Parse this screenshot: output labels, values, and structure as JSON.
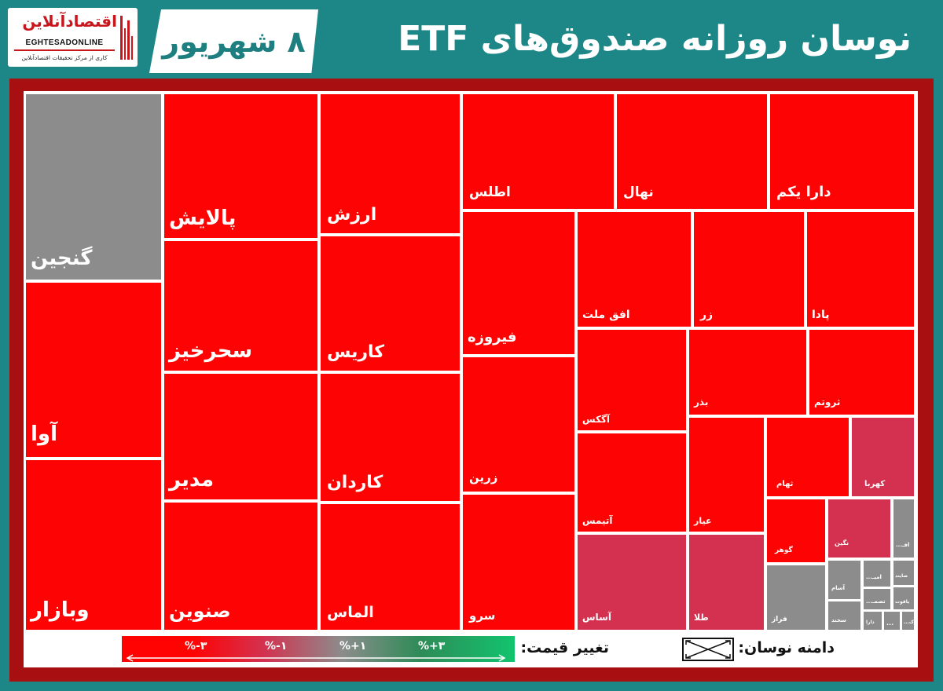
{
  "header": {
    "title": "نوسان روزانه صندوق‌های ETF",
    "date": "۸ شهریور"
  },
  "logo": {
    "name": "اقتصادآنلاین",
    "latin": "EGHTESADONLINE",
    "tagline": "کاری از مرکز تحقیقات اقتصادآنلاین",
    "icon": "bars-icon"
  },
  "legend": {
    "price_change_label": "تغییر قیمت:",
    "range_label": "دامنه نوسان:",
    "range_icon": "crossed-box-icon",
    "ticks": [
      "%-۳",
      "%-۱",
      "%+۱",
      "%+۳"
    ],
    "gradient": [
      "#ff0303",
      "#d3314f",
      "#8c8c8c",
      "#2e8b57",
      "#12c46e"
    ]
  },
  "colors": {
    "red": "#fd0303",
    "crimson": "#d3314f",
    "gray": "#8c8c8c",
    "teal": "#1d8787",
    "frame": "#a80f10"
  },
  "chart_data": {
    "type": "heatmap",
    "items": [
      {
        "label": "گنجین",
        "color": "gray"
      },
      {
        "label": "آوا",
        "color": "red"
      },
      {
        "label": "وبازار",
        "color": "red"
      },
      {
        "label": "پالایش",
        "color": "red"
      },
      {
        "label": "سحرخیز",
        "color": "red"
      },
      {
        "label": "مدیر",
        "color": "red"
      },
      {
        "label": "صنوین",
        "color": "red"
      },
      {
        "label": "ارزش",
        "color": "red"
      },
      {
        "label": "کاریس",
        "color": "red"
      },
      {
        "label": "کاردان",
        "color": "red"
      },
      {
        "label": "الماس",
        "color": "red"
      },
      {
        "label": "اطلس",
        "color": "red"
      },
      {
        "label": "نهال",
        "color": "red"
      },
      {
        "label": "دارا یکم",
        "color": "red"
      },
      {
        "label": "فیروزه",
        "color": "red"
      },
      {
        "label": "زرین",
        "color": "red"
      },
      {
        "label": "سرو",
        "color": "red"
      },
      {
        "label": "افق ملت",
        "color": "red"
      },
      {
        "label": "زر",
        "color": "red"
      },
      {
        "label": "پادا",
        "color": "red"
      },
      {
        "label": "آگکس",
        "color": "red"
      },
      {
        "label": "آتیمس",
        "color": "red"
      },
      {
        "label": "آساس",
        "color": "crimson"
      },
      {
        "label": "بذر",
        "color": "red"
      },
      {
        "label": "ثروتم",
        "color": "red"
      },
      {
        "label": "عیار",
        "color": "red"
      },
      {
        "label": "طلا",
        "color": "crimson"
      },
      {
        "label": "ثهام",
        "color": "red"
      },
      {
        "label": "کهربا",
        "color": "crimson"
      },
      {
        "label": "گوهر",
        "color": "red"
      },
      {
        "label": "نگین",
        "color": "crimson"
      },
      {
        "label": "افـ...",
        "color": "gray"
      },
      {
        "label": "فراز",
        "color": "gray"
      },
      {
        "label": "آسام",
        "color": "gray"
      },
      {
        "label": "سخند",
        "color": "gray"
      },
      {
        "label": "امیـ...",
        "color": "gray"
      },
      {
        "label": "تصمـ...",
        "color": "gray"
      },
      {
        "label": "صايند",
        "color": "gray"
      },
      {
        "label": "ياقوت",
        "color": "gray"
      },
      {
        "label": "دارا",
        "color": "gray"
      },
      {
        "label": "...",
        "color": "gray"
      },
      {
        "label": "ک...",
        "color": "gray"
      }
    ]
  }
}
